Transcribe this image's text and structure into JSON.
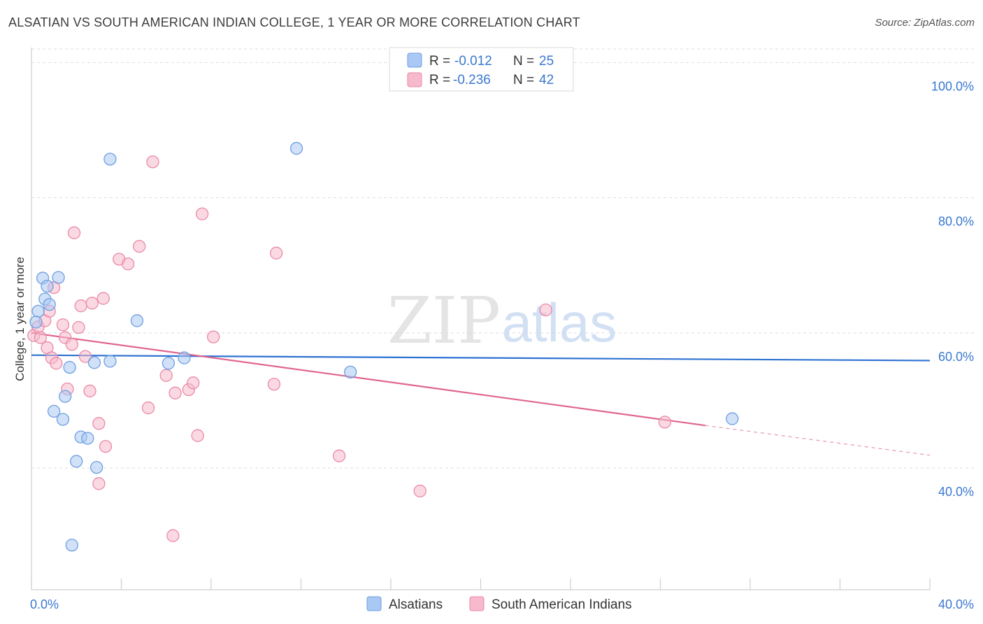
{
  "title": "ALSATIAN VS SOUTH AMERICAN INDIAN COLLEGE, 1 YEAR OR MORE CORRELATION CHART",
  "source": "Source: ZipAtlas.com",
  "watermark": {
    "zip": "ZIP",
    "atlas": "atlas"
  },
  "colors": {
    "blue_fill": "#a9c8f3",
    "blue_stroke": "#6f9fe0",
    "blue_line": "#2e72d2",
    "pink_fill": "#f7b9cc",
    "pink_stroke": "#e98aa8",
    "pink_line": "#e0668f",
    "axis_text": "#3a78d0",
    "grid": "#dddddd"
  },
  "stats_legend": {
    "rows": [
      {
        "r_label": "R =",
        "r_value": "-0.012",
        "n_label": "N =",
        "n_value": "25"
      },
      {
        "r_label": "R =",
        "r_value": "-0.236",
        "n_label": "N =",
        "n_value": "42"
      }
    ]
  },
  "bottom_legend": {
    "items": [
      "Alsatians",
      "South American Indians"
    ]
  },
  "chart_data": {
    "type": "scatter",
    "title": "ALSATIAN VS SOUTH AMERICAN INDIAN COLLEGE, 1 YEAR OR MORE CORRELATION CHART",
    "xlabel": "",
    "ylabel": "College, 1 year or more",
    "xlim": [
      0,
      40
    ],
    "ylim": [
      22,
      102
    ],
    "x_tick_labels": [
      "0.0%",
      "40.0%"
    ],
    "y_ticks": [
      40,
      60,
      80,
      100
    ],
    "y_tick_labels": [
      "40.0%",
      "60.0%",
      "80.0%",
      "100.0%"
    ],
    "grid": true,
    "legend_position": "top-center",
    "series": [
      {
        "name": "Alsatians",
        "color": "#a9c8f3",
        "points": [
          [
            0.3,
            63.2
          ],
          [
            0.5,
            68.1
          ],
          [
            0.7,
            66.9
          ],
          [
            1.2,
            68.2
          ],
          [
            0.6,
            65.0
          ],
          [
            0.8,
            64.2
          ],
          [
            0.2,
            61.6
          ],
          [
            3.5,
            85.7
          ],
          [
            4.7,
            61.8
          ],
          [
            11.8,
            87.3
          ],
          [
            1.7,
            54.9
          ],
          [
            2.8,
            55.6
          ],
          [
            3.5,
            55.8
          ],
          [
            6.1,
            55.5
          ],
          [
            6.8,
            56.3
          ],
          [
            14.2,
            54.2
          ],
          [
            1.5,
            50.6
          ],
          [
            1.0,
            48.4
          ],
          [
            1.4,
            47.2
          ],
          [
            2.2,
            44.6
          ],
          [
            2.5,
            44.4
          ],
          [
            2.0,
            41.0
          ],
          [
            2.9,
            40.1
          ],
          [
            31.2,
            47.3
          ],
          [
            1.8,
            28.6
          ]
        ],
        "trend": {
          "x": [
            0,
            40
          ],
          "y": [
            56.7,
            55.9
          ]
        }
      },
      {
        "name": "South American Indians",
        "color": "#f7b9cc",
        "points": [
          [
            0.1,
            59.6
          ],
          [
            0.3,
            60.9
          ],
          [
            0.4,
            59.3
          ],
          [
            0.6,
            61.8
          ],
          [
            0.8,
            63.2
          ],
          [
            1.0,
            66.7
          ],
          [
            1.4,
            61.2
          ],
          [
            1.5,
            59.3
          ],
          [
            0.7,
            57.8
          ],
          [
            0.9,
            56.3
          ],
          [
            1.1,
            55.5
          ],
          [
            1.8,
            58.3
          ],
          [
            2.1,
            60.8
          ],
          [
            2.4,
            56.5
          ],
          [
            1.6,
            51.7
          ],
          [
            2.2,
            64.0
          ],
          [
            2.7,
            64.4
          ],
          [
            3.2,
            65.1
          ],
          [
            1.9,
            74.8
          ],
          [
            3.9,
            70.9
          ],
          [
            4.3,
            70.2
          ],
          [
            4.8,
            72.8
          ],
          [
            5.4,
            85.3
          ],
          [
            7.6,
            77.6
          ],
          [
            10.9,
            71.8
          ],
          [
            8.1,
            59.4
          ],
          [
            6.0,
            53.7
          ],
          [
            6.4,
            51.1
          ],
          [
            7.0,
            51.6
          ],
          [
            7.2,
            52.6
          ],
          [
            10.8,
            52.4
          ],
          [
            2.6,
            51.4
          ],
          [
            5.2,
            48.9
          ],
          [
            3.0,
            46.6
          ],
          [
            3.3,
            43.2
          ],
          [
            7.4,
            44.8
          ],
          [
            13.7,
            41.8
          ],
          [
            3.0,
            37.7
          ],
          [
            17.3,
            36.6
          ],
          [
            6.3,
            30.0
          ],
          [
            22.9,
            63.4
          ],
          [
            28.2,
            46.8
          ]
        ],
        "trend": {
          "x": [
            0,
            30
          ],
          "y": [
            60.0,
            46.3
          ]
        },
        "trend_extension": {
          "x": [
            30,
            40
          ],
          "y": [
            46.3,
            41.9
          ]
        }
      }
    ]
  }
}
